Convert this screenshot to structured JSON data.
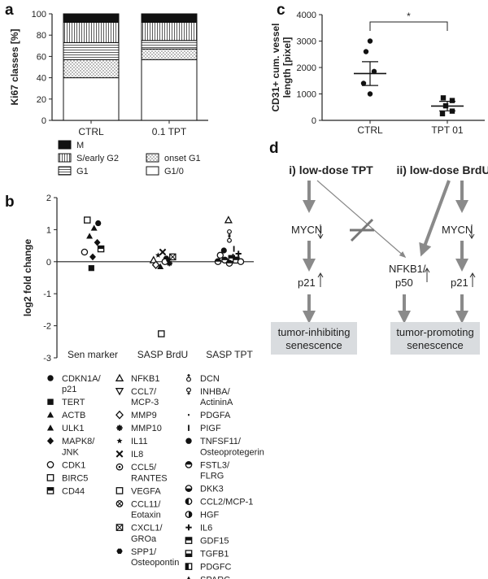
{
  "chart_data": [
    {
      "panel": "a",
      "type": "bar",
      "stacked": true,
      "ylabel": "Ki67 classes [%]",
      "ylim": [
        0,
        100
      ],
      "yticks": [
        "0",
        "20",
        "40",
        "60",
        "80",
        "100"
      ],
      "categories": [
        "CTRL",
        "0.1 TPT"
      ],
      "series": [
        {
          "name": "G1/0",
          "pattern": "plain",
          "values": [
            40,
            57
          ]
        },
        {
          "name": "onset G1",
          "pattern": "dots",
          "values": [
            17,
            10
          ]
        },
        {
          "name": "G1",
          "pattern": "horizontal",
          "values": [
            16,
            8
          ]
        },
        {
          "name": "S/early G2",
          "pattern": "vertical",
          "values": [
            19,
            17
          ]
        },
        {
          "name": "M",
          "pattern": "solid",
          "values": [
            8,
            8
          ]
        }
      ],
      "legend_order": [
        "M",
        "S/early G2",
        "onset G1",
        "G1",
        "G1/0"
      ]
    },
    {
      "panel": "c",
      "type": "scatter",
      "ylabel_lines": [
        "CD31+ cum. vessel",
        "length [pixel]"
      ],
      "ylim": [
        0,
        4000
      ],
      "yticks": [
        "0",
        "1000",
        "2000",
        "3000",
        "4000"
      ],
      "categories": [
        "CTRL",
        "TPT 01"
      ],
      "significance": "*",
      "groups": [
        {
          "name": "CTRL",
          "marker": "circle",
          "points": [
            3000,
            2600,
            1850,
            1400,
            1000
          ],
          "mean": 1770,
          "sem_low": 1320,
          "sem_high": 2220
        },
        {
          "name": "TPT 01",
          "marker": "square",
          "points": [
            850,
            750,
            550,
            350,
            250
          ],
          "mean": 540,
          "sem_low": 360,
          "sem_high": 720
        }
      ]
    },
    {
      "panel": "b",
      "type": "scatter",
      "ylabel": "log2 fold change",
      "ylim": [
        -3,
        2
      ],
      "yticks": [
        "2",
        "1",
        "0",
        "-1",
        "-2",
        "-3"
      ],
      "categories": [
        "Sen marker",
        "SASP BrdU",
        "SASP TPT"
      ],
      "points": [
        {
          "cat": 0,
          "dx": -0.12,
          "y": 1.3,
          "m": "open-square"
        },
        {
          "cat": 0,
          "dx": 0.12,
          "y": 1.2,
          "m": "circle"
        },
        {
          "cat": 0,
          "dx": 0.03,
          "y": 1.05,
          "m": "triangle"
        },
        {
          "cat": 0,
          "dx": -0.07,
          "y": 0.8,
          "m": "triangle"
        },
        {
          "cat": 0,
          "dx": 0.1,
          "y": 0.6,
          "m": "diamond"
        },
        {
          "cat": 0,
          "dx": 0.18,
          "y": 0.4,
          "m": "half-square"
        },
        {
          "cat": 0,
          "dx": -0.18,
          "y": 0.3,
          "m": "open-circle"
        },
        {
          "cat": 0,
          "dx": 0.0,
          "y": 0.15,
          "m": "diamond"
        },
        {
          "cat": 0,
          "dx": -0.03,
          "y": -0.2,
          "m": "square"
        },
        {
          "cat": 1,
          "dx": -0.2,
          "y": 0.05,
          "m": "open-triangle"
        },
        {
          "cat": 1,
          "dx": -0.1,
          "y": 0.2,
          "m": "star"
        },
        {
          "cat": 1,
          "dx": 0.0,
          "y": 0.3,
          "m": "cross"
        },
        {
          "cat": 1,
          "dx": 0.08,
          "y": 0.1,
          "m": "circle"
        },
        {
          "cat": 1,
          "dx": 0.15,
          "y": -0.05,
          "m": "asterisk"
        },
        {
          "cat": 1,
          "dx": -0.15,
          "y": -0.1,
          "m": "open-diamond"
        },
        {
          "cat": 1,
          "dx": -0.05,
          "y": -0.15,
          "m": "triangle"
        },
        {
          "cat": 1,
          "dx": 0.05,
          "y": 0.0,
          "m": "open-circle"
        },
        {
          "cat": 1,
          "dx": 0.22,
          "y": 0.15,
          "m": "crossed-square"
        },
        {
          "cat": 1,
          "dx": 0.12,
          "y": 0.05,
          "m": "dot"
        },
        {
          "cat": 1,
          "dx": -0.03,
          "y": -2.25,
          "m": "open-square"
        },
        {
          "cat": 2,
          "dx": -0.02,
          "y": 1.3,
          "m": "open-triangle"
        },
        {
          "cat": 2,
          "dx": 0.0,
          "y": 0.9,
          "m": "female"
        },
        {
          "cat": 2,
          "dx": 0.0,
          "y": 0.7,
          "m": "male"
        },
        {
          "cat": 2,
          "dx": -0.12,
          "y": 0.35,
          "m": "circle"
        },
        {
          "cat": 2,
          "dx": -0.2,
          "y": 0.2,
          "m": "open-circle"
        },
        {
          "cat": 2,
          "dx": 0.1,
          "y": 0.4,
          "m": "vbar"
        },
        {
          "cat": 2,
          "dx": 0.2,
          "y": 0.25,
          "m": "plus"
        },
        {
          "cat": 2,
          "dx": -0.1,
          "y": 0.05,
          "m": "half-circle"
        },
        {
          "cat": 2,
          "dx": 0.05,
          "y": 0.1,
          "m": "half-square"
        },
        {
          "cat": 2,
          "dx": 0.15,
          "y": 0.05,
          "m": "half-square"
        },
        {
          "cat": 2,
          "dx": -0.25,
          "y": 0.0,
          "m": "half-circle"
        },
        {
          "cat": 2,
          "dx": 0.25,
          "y": 0.0,
          "m": "open-circle"
        },
        {
          "cat": 2,
          "dx": 0.0,
          "y": -0.05,
          "m": "half-circle"
        },
        {
          "cat": 2,
          "dx": 0.08,
          "y": 0.22,
          "m": "dash"
        }
      ],
      "legend_columns": [
        [
          {
            "m": "circle",
            "label": [
              "CDKN1A/",
              "p21"
            ]
          },
          {
            "m": "square",
            "label": [
              "TERT"
            ]
          },
          {
            "m": "triangle",
            "label": [
              "ACTB"
            ]
          },
          {
            "m": "triangle",
            "label": [
              "ULK1"
            ]
          },
          {
            "m": "diamond",
            "label": [
              "MAPK8/",
              "JNK"
            ]
          },
          {
            "m": "open-circle",
            "label": [
              "CDK1"
            ]
          },
          {
            "m": "open-square",
            "label": [
              "BIRC5"
            ]
          },
          {
            "m": "half-square",
            "label": [
              "CD44"
            ]
          }
        ],
        [
          {
            "m": "open-triangle",
            "label": [
              "NFKB1"
            ]
          },
          {
            "m": "open-triangle-down",
            "label": [
              "CCL7/",
              "MCP-3"
            ]
          },
          {
            "m": "open-diamond",
            "label": [
              "MMP9"
            ]
          },
          {
            "m": "asterisk",
            "label": [
              "MMP10"
            ]
          },
          {
            "m": "star",
            "label": [
              "IL11"
            ]
          },
          {
            "m": "cross",
            "label": [
              "IL8"
            ]
          },
          {
            "m": "dot-circle",
            "label": [
              "CCL5/",
              "RANTES"
            ]
          },
          {
            "m": "open-square",
            "label": [
              "VEGFA"
            ]
          },
          {
            "m": "crossed-circle",
            "label": [
              "CCL11/",
              "Eotaxin"
            ]
          },
          {
            "m": "crossed-square",
            "label": [
              "CXCL1/",
              "GROa"
            ]
          },
          {
            "m": "hexagon",
            "label": [
              "SPP1/",
              "Osteopontin"
            ]
          }
        ],
        [
          {
            "m": "male",
            "label": [
              "DCN"
            ]
          },
          {
            "m": "female",
            "label": [
              "INHBA/",
              "ActininA"
            ]
          },
          {
            "m": "dash",
            "label": [
              "PDGFA"
            ]
          },
          {
            "m": "vbar",
            "label": [
              "PIGF"
            ]
          },
          {
            "m": "circle",
            "label": [
              "TNFSF11/",
              "Osteoprotegerin"
            ]
          },
          {
            "m": "half-circle",
            "label": [
              "FSTL3/",
              "FLRG"
            ]
          },
          {
            "m": "half-circle-b",
            "label": [
              "DKK3"
            ]
          },
          {
            "m": "half-circle-l",
            "label": [
              "CCL2/MCP-1"
            ]
          },
          {
            "m": "half-circle-r",
            "label": [
              "HGF"
            ]
          },
          {
            "m": "plus",
            "label": [
              "IL6"
            ]
          },
          {
            "m": "half-square",
            "label": [
              "GDF15"
            ]
          },
          {
            "m": "half-square-b",
            "label": [
              "TGFB1"
            ]
          },
          {
            "m": "half-square-l",
            "label": [
              "PDGFC"
            ]
          },
          {
            "m": "triangle",
            "label": [
              "SPARC"
            ]
          }
        ]
      ]
    }
  ],
  "diagram": {
    "left_title": "i) low-dose TPT",
    "right_title": "ii) low-dose BrdU",
    "mycn": "MYCN",
    "p21": "p21",
    "nfkb_lines": [
      "NFKB1/",
      "p50"
    ],
    "box_left": [
      "tumor-inhibiting",
      "senescence"
    ],
    "box_right": [
      "tumor-promoting",
      "senescence"
    ]
  },
  "panel_letters": {
    "a": "a",
    "b": "b",
    "c": "c",
    "d": "d"
  }
}
